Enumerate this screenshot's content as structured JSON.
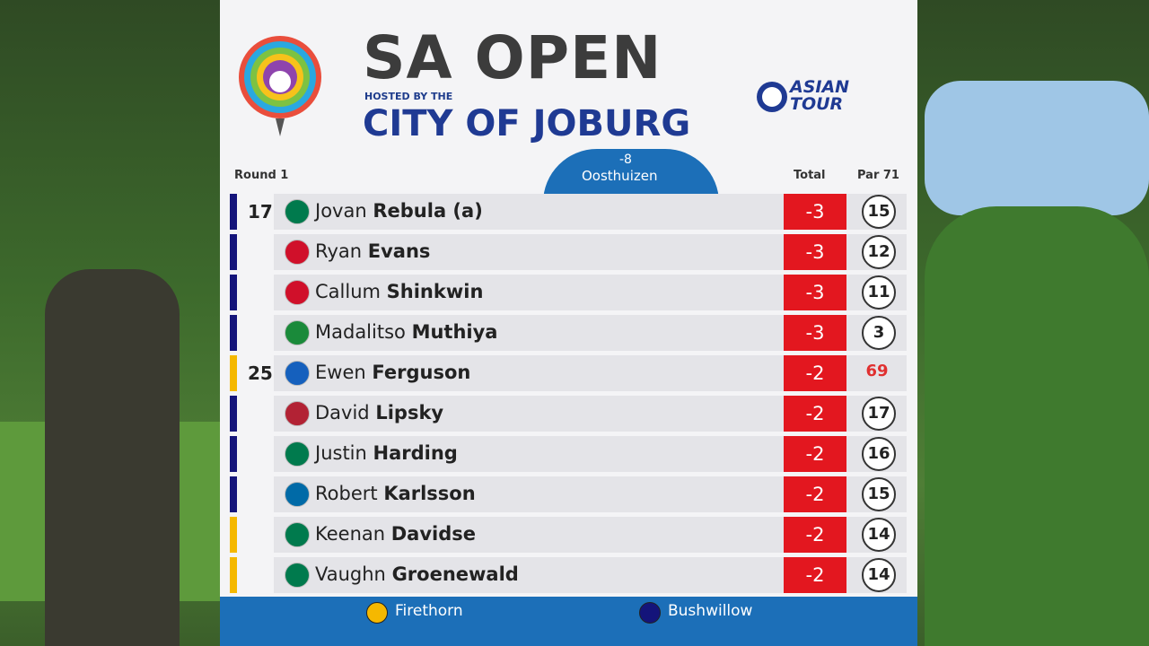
{
  "header": {
    "title": "SA OPEN",
    "hosted": "HOSTED BY THE",
    "city": "CITY OF JOBURG",
    "sponsor": "ASIAN TOUR"
  },
  "leader": {
    "score": "-8",
    "name": "Oosthuizen"
  },
  "columns": {
    "round": "Round 1",
    "total": "Total",
    "par": "Par 71"
  },
  "legend": [
    {
      "label": "Firethorn",
      "color": "#f5b800"
    },
    {
      "label": "Bushwillow",
      "color": "#14147a"
    }
  ],
  "rows": [
    {
      "position": 17,
      "first": "Jovan",
      "last": "Rebula (a)",
      "total": -3,
      "thru": 15,
      "bar_color": "#14147a",
      "flag_color": "#007a4d"
    },
    {
      "position": null,
      "first": "Ryan",
      "last": "Evans",
      "total": -3,
      "thru": 12,
      "bar_color": "#14147a",
      "flag_color": "#d0102a"
    },
    {
      "position": null,
      "first": "Callum",
      "last": "Shinkwin",
      "total": -3,
      "thru": 11,
      "bar_color": "#14147a",
      "flag_color": "#d0102a"
    },
    {
      "position": null,
      "first": "Madalitso",
      "last": "Muthiya",
      "total": -3,
      "thru": 3,
      "bar_color": "#14147a",
      "flag_color": "#1a8a3a"
    },
    {
      "position": 25,
      "first": "Ewen",
      "last": "Ferguson",
      "total": -2,
      "thru": 69,
      "bar_color": "#f5b800",
      "flag_color": "#1560bd",
      "thru_color": "#e03030"
    },
    {
      "position": null,
      "first": "David",
      "last": "Lipsky",
      "total": -2,
      "thru": 17,
      "bar_color": "#14147a",
      "flag_color": "#b22234"
    },
    {
      "position": null,
      "first": "Justin",
      "last": "Harding",
      "total": -2,
      "thru": 16,
      "bar_color": "#14147a",
      "flag_color": "#007a4d"
    },
    {
      "position": null,
      "first": "Robert",
      "last": "Karlsson",
      "total": -2,
      "thru": 15,
      "bar_color": "#14147a",
      "flag_color": "#006aa7"
    },
    {
      "position": null,
      "first": "Keenan",
      "last": "Davidse",
      "total": -2,
      "thru": 14,
      "bar_color": "#f5b800",
      "flag_color": "#007a4d"
    },
    {
      "position": null,
      "first": "Vaughn",
      "last": "Groenewald",
      "total": -2,
      "thru": 14,
      "bar_color": "#f5b800",
      "flag_color": "#007a4d"
    }
  ]
}
